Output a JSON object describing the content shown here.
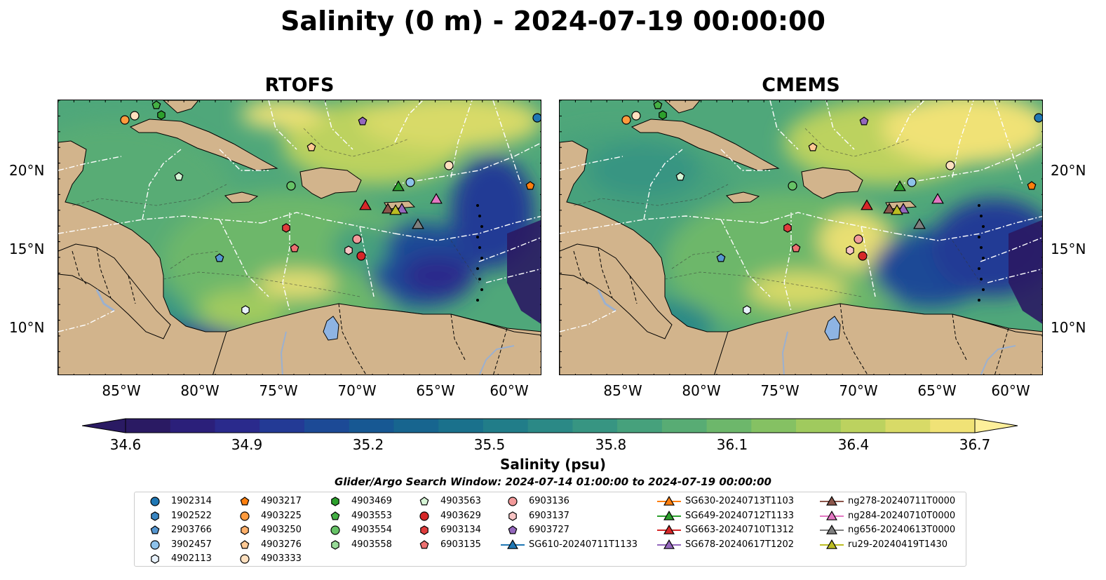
{
  "title": "Salinity (0 m) - 2024-07-19 00:00:00",
  "panels": [
    {
      "title": "RTOFS"
    },
    {
      "title": "CMEMS"
    }
  ],
  "lon_labels": [
    "85°W",
    "80°W",
    "75°W",
    "70°W",
    "65°W",
    "60°W"
  ],
  "lat_labels": [
    "20°N",
    "15°N",
    "10°N"
  ],
  "colorbar": {
    "ticks": [
      "34.6",
      "34.9",
      "35.2",
      "35.5",
      "35.8",
      "36.1",
      "36.4",
      "36.7"
    ],
    "label": "Salinity (psu)",
    "colormap": "haline",
    "min": 34.6,
    "max": 36.7
  },
  "search_window": "Glider/Argo Search Window: 2024-07-14 01:00:00 to 2024-07-19 00:00:00",
  "legend": [
    {
      "name": "1902314",
      "marker": "circle",
      "color": "#1f77b4"
    },
    {
      "name": "1902522",
      "marker": "hexagon",
      "color": "#3a86c2"
    },
    {
      "name": "2903766",
      "marker": "pentagon",
      "color": "#5596d0"
    },
    {
      "name": "3902457",
      "marker": "circle",
      "color": "#8ec2ea"
    },
    {
      "name": "4902113",
      "marker": "hexagon",
      "color": "#e8f2fc"
    },
    {
      "name": "4903217",
      "marker": "pentagon",
      "color": "#ff7f0e"
    },
    {
      "name": "4903225",
      "marker": "circle",
      "color": "#ff9a3d"
    },
    {
      "name": "4903250",
      "marker": "hexagon",
      "color": "#ffb06a"
    },
    {
      "name": "4903276",
      "marker": "pentagon",
      "color": "#ffc994"
    },
    {
      "name": "4903333",
      "marker": "circle",
      "color": "#ffe0bf"
    },
    {
      "name": "4903469",
      "marker": "hexagon",
      "color": "#2ca02c"
    },
    {
      "name": "4903553",
      "marker": "pentagon",
      "color": "#44b044"
    },
    {
      "name": "4903554",
      "marker": "circle",
      "color": "#66c266"
    },
    {
      "name": "4903558",
      "marker": "hexagon",
      "color": "#98db98"
    },
    {
      "name": "4903563",
      "marker": "pentagon",
      "color": "#d6f5d6"
    },
    {
      "name": "4903629",
      "marker": "circle",
      "color": "#d62728"
    },
    {
      "name": "6903134",
      "marker": "hexagon",
      "color": "#e03c3c"
    },
    {
      "name": "6903135",
      "marker": "pentagon",
      "color": "#ec7070"
    },
    {
      "name": "6903136",
      "marker": "circle",
      "color": "#f29a9a"
    },
    {
      "name": "6903137",
      "marker": "hexagon",
      "color": "#f8c4c4"
    },
    {
      "name": "6903727",
      "marker": "pentagon",
      "color": "#9467bd"
    },
    {
      "name": "SG610-20240711T1133",
      "marker": "triangle-line",
      "color": "#1f77b4"
    },
    {
      "name": "SG630-20240713T1103",
      "marker": "triangle-line",
      "color": "#ff7f0e"
    },
    {
      "name": "SG649-20240712T1133",
      "marker": "triangle-line",
      "color": "#2ca02c"
    },
    {
      "name": "SG663-20240710T1312",
      "marker": "triangle-line",
      "color": "#d62728"
    },
    {
      "name": "SG678-20240617T1202",
      "marker": "triangle-line",
      "color": "#9467bd"
    },
    {
      "name": "ng278-20240711T0000",
      "marker": "triangle-line",
      "color": "#8c564b"
    },
    {
      "name": "ng284-20240710T0000",
      "marker": "triangle-line",
      "color": "#e377c2"
    },
    {
      "name": "ng656-20240613T0000",
      "marker": "triangle-line",
      "color": "#7f7f7f"
    },
    {
      "name": "ru29-20240419T1430",
      "marker": "triangle-line",
      "color": "#bcbd22"
    }
  ]
}
